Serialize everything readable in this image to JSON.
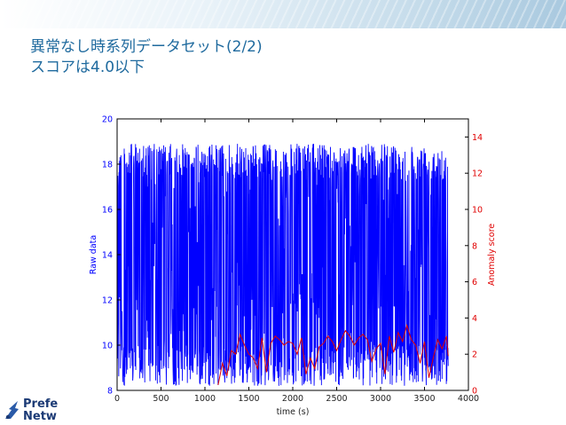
{
  "slide": {
    "title_line1": "異常なし時系列データセット(2/2)",
    "title_line2": "スコアは4.0以下"
  },
  "logo": {
    "line1": "Prefe",
    "line2": "Netw"
  },
  "colors": {
    "raw": "#0000ff",
    "score": "#e00000",
    "title": "#1f6a9e"
  },
  "chart_data": {
    "type": "line",
    "xlabel": "time (s)",
    "ylabel_left": "Raw data",
    "ylabel_right": "Anomaly score",
    "xlim": [
      0,
      4000
    ],
    "ylim_left": [
      8,
      20
    ],
    "ylim_right": [
      0,
      15
    ],
    "x_ticks": [
      0,
      500,
      1000,
      1500,
      2000,
      2500,
      3000,
      3500,
      4000
    ],
    "y_left_ticks": [
      8,
      10,
      12,
      14,
      16,
      18,
      20
    ],
    "y_right_ticks": [
      0,
      2,
      4,
      6,
      8,
      10,
      12,
      14
    ],
    "series": [
      {
        "name": "Raw data",
        "axis": "left",
        "x_start": 0,
        "x_end": 3770,
        "min_value": 8.2,
        "max_value": 18.9
      },
      {
        "name": "Anomaly score",
        "axis": "right",
        "x": [
          1150,
          1200,
          1250,
          1300,
          1350,
          1400,
          1450,
          1500,
          1550,
          1600,
          1650,
          1700,
          1750,
          1800,
          1850,
          1900,
          1950,
          2000,
          2050,
          2100,
          2150,
          2200,
          2250,
          2300,
          2350,
          2400,
          2450,
          2500,
          2550,
          2600,
          2650,
          2700,
          2750,
          2800,
          2850,
          2900,
          2950,
          3000,
          3050,
          3100,
          3150,
          3200,
          3250,
          3300,
          3350,
          3400,
          3450,
          3500,
          3550,
          3600,
          3650,
          3700,
          3750,
          3770
        ],
        "values": [
          0.3,
          1.5,
          0.8,
          2.2,
          2.0,
          3.1,
          2.5,
          2.0,
          1.8,
          1.2,
          2.9,
          1.0,
          2.6,
          3.0,
          2.8,
          2.5,
          2.7,
          2.6,
          2.0,
          2.9,
          0.9,
          1.8,
          1.2,
          2.4,
          2.6,
          3.0,
          2.7,
          2.2,
          2.8,
          3.3,
          3.0,
          2.5,
          2.9,
          3.1,
          2.8,
          1.6,
          2.3,
          2.6,
          0.9,
          3.0,
          2.1,
          3.2,
          2.7,
          3.6,
          2.8,
          2.5,
          1.5,
          2.7,
          0.7,
          1.8,
          2.8,
          2.3,
          3.0,
          1.9
        ]
      }
    ]
  }
}
